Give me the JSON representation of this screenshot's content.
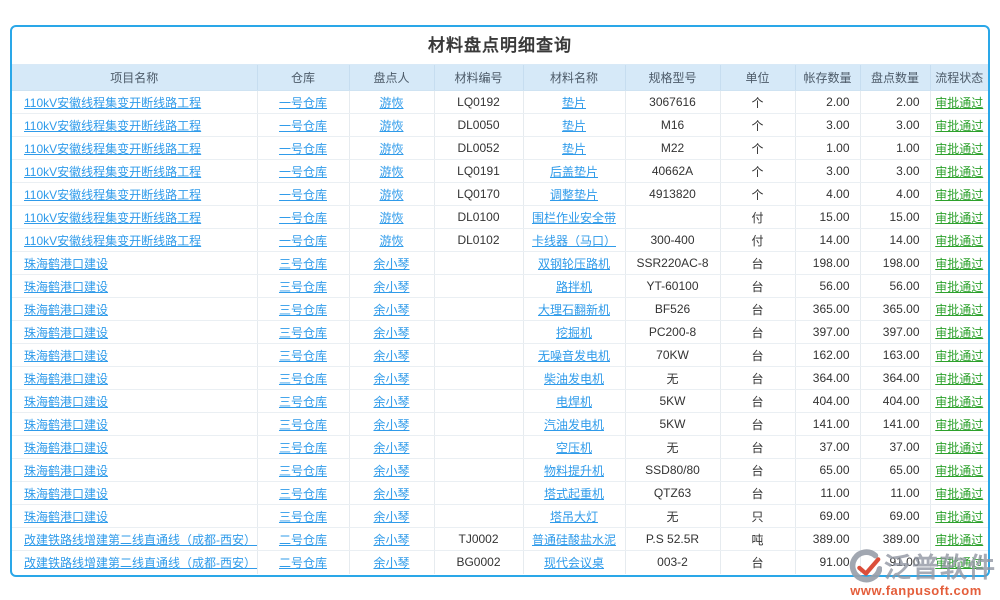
{
  "page": {
    "title": "材料盘点明细查询"
  },
  "colors": {
    "accent": "#2aa7e8",
    "link_blue": "#2f9bea",
    "status_green": "#2ca12c",
    "header_bg": "#d6e9f8"
  },
  "table": {
    "columns": [
      "项目名称",
      "仓库",
      "盘点人",
      "材料编号",
      "材料名称",
      "规格型号",
      "单位",
      "帐存数量",
      "盘点数量",
      "流程状态"
    ],
    "rows": [
      [
        "110kV安徽线程集变开断线路工程",
        "一号仓库",
        "游恢",
        "LQ0192",
        "垫片",
        "3067616",
        "个",
        "2.00",
        "2.00",
        "审批通过"
      ],
      [
        "110kV安徽线程集变开断线路工程",
        "一号仓库",
        "游恢",
        "DL0050",
        "垫片",
        "M16",
        "个",
        "3.00",
        "3.00",
        "审批通过"
      ],
      [
        "110kV安徽线程集变开断线路工程",
        "一号仓库",
        "游恢",
        "DL0052",
        "垫片",
        "M22",
        "个",
        "1.00",
        "1.00",
        "审批通过"
      ],
      [
        "110kV安徽线程集变开断线路工程",
        "一号仓库",
        "游恢",
        "LQ0191",
        "后盖垫片",
        "40662A",
        "个",
        "3.00",
        "3.00",
        "审批通过"
      ],
      [
        "110kV安徽线程集变开断线路工程",
        "一号仓库",
        "游恢",
        "LQ0170",
        "调整垫片",
        "4913820",
        "个",
        "4.00",
        "4.00",
        "审批通过"
      ],
      [
        "110kV安徽线程集变开断线路工程",
        "一号仓库",
        "游恢",
        "DL0100",
        "围栏作业安全带",
        "",
        "付",
        "15.00",
        "15.00",
        "审批通过"
      ],
      [
        "110kV安徽线程集变开断线路工程",
        "一号仓库",
        "游恢",
        "DL0102",
        "卡线器（马口）",
        "300-400",
        "付",
        "14.00",
        "14.00",
        "审批通过"
      ],
      [
        "珠海鹤港口建设",
        "三号仓库",
        "余小琴",
        "",
        "双钢轮压路机",
        "SSR220AC-8",
        "台",
        "198.00",
        "198.00",
        "审批通过"
      ],
      [
        "珠海鹤港口建设",
        "三号仓库",
        "余小琴",
        "",
        "路拌机",
        "YT-60100",
        "台",
        "56.00",
        "56.00",
        "审批通过"
      ],
      [
        "珠海鹤港口建设",
        "三号仓库",
        "余小琴",
        "",
        "大理石翻新机",
        "BF526",
        "台",
        "365.00",
        "365.00",
        "审批通过"
      ],
      [
        "珠海鹤港口建设",
        "三号仓库",
        "余小琴",
        "",
        "挖掘机",
        "PC200-8",
        "台",
        "397.00",
        "397.00",
        "审批通过"
      ],
      [
        "珠海鹤港口建设",
        "三号仓库",
        "余小琴",
        "",
        "无噪音发电机",
        "70KW",
        "台",
        "162.00",
        "163.00",
        "审批通过"
      ],
      [
        "珠海鹤港口建设",
        "三号仓库",
        "余小琴",
        "",
        "柴油发电机",
        "无",
        "台",
        "364.00",
        "364.00",
        "审批通过"
      ],
      [
        "珠海鹤港口建设",
        "三号仓库",
        "余小琴",
        "",
        "电焊机",
        "5KW",
        "台",
        "404.00",
        "404.00",
        "审批通过"
      ],
      [
        "珠海鹤港口建设",
        "三号仓库",
        "余小琴",
        "",
        "汽油发电机",
        "5KW",
        "台",
        "141.00",
        "141.00",
        "审批通过"
      ],
      [
        "珠海鹤港口建设",
        "三号仓库",
        "余小琴",
        "",
        "空压机",
        "无",
        "台",
        "37.00",
        "37.00",
        "审批通过"
      ],
      [
        "珠海鹤港口建设",
        "三号仓库",
        "余小琴",
        "",
        "物料提升机",
        "SSD80/80",
        "台",
        "65.00",
        "65.00",
        "审批通过"
      ],
      [
        "珠海鹤港口建设",
        "三号仓库",
        "余小琴",
        "",
        "塔式起重机",
        "QTZ63",
        "台",
        "11.00",
        "11.00",
        "审批通过"
      ],
      [
        "珠海鹤港口建设",
        "三号仓库",
        "余小琴",
        "",
        "塔吊大灯",
        "无",
        "只",
        "69.00",
        "69.00",
        "审批通过"
      ],
      [
        "改建铁路线增建第二线直通线（成都-西安）电力线",
        "二号仓库",
        "余小琴",
        "TJ0002",
        "普通硅酸盐水泥",
        "P.S 52.5R",
        "吨",
        "389.00",
        "389.00",
        "审批通过"
      ],
      [
        "改建铁路线增建第二线直通线（成都-西安）电力线",
        "二号仓库",
        "余小琴",
        "BG0002",
        "现代会议桌",
        "003-2",
        "台",
        "91.00",
        "91.00",
        "审批通过"
      ]
    ]
  },
  "watermark": {
    "brand": "泛普软件",
    "url": "www.fanpusoft.com"
  }
}
